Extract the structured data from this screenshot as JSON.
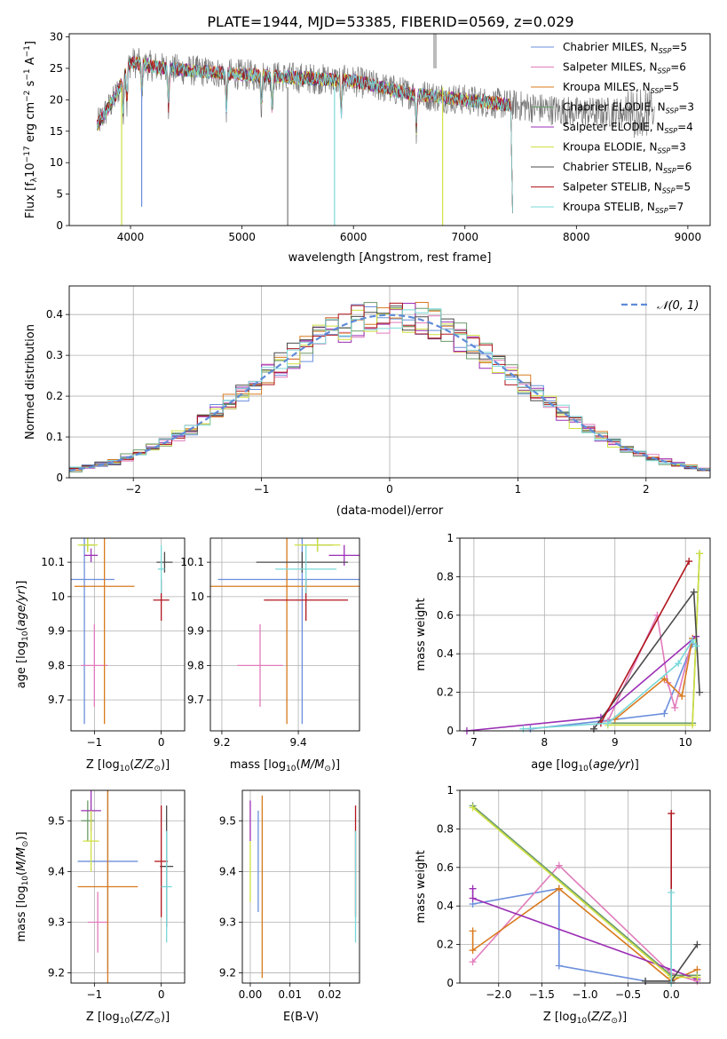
{
  "figure": {
    "title": "PLATE=1944, MJD=53385, FIBERID=0569, z=0.029"
  },
  "legend_entries": [
    {
      "label": "Chabrier MILES, N",
      "sub": "SSP",
      "tail": "=5",
      "color": "#6b8fdc"
    },
    {
      "label": "Salpeter MILES, N",
      "sub": "SSP",
      "tail": "=6",
      "color": "#e17bbb"
    },
    {
      "label": "Kroupa MILES, N",
      "sub": "SSP",
      "tail": "=5",
      "color": "#d97a1e"
    },
    {
      "label": "Chabrier ELODIE, N",
      "sub": "SSP",
      "tail": "=3",
      "color": "#6a9a6a"
    },
    {
      "label": "Salpeter ELODIE, N",
      "sub": "SSP",
      "tail": "=4",
      "color": "#9b2fb5"
    },
    {
      "label": "Kroupa ELODIE, N",
      "sub": "SSP",
      "tail": "=3",
      "color": "#d0e040"
    },
    {
      "label": "Chabrier STELIB, N",
      "sub": "SSP",
      "tail": "=6",
      "color": "#4a4a4a"
    },
    {
      "label": "Salpeter STELIB, N",
      "sub": "SSP",
      "tail": "=5",
      "color": "#b0161e"
    },
    {
      "label": "Kroupa STELIB, N",
      "sub": "SSP",
      "tail": "=7",
      "color": "#7ad8d8"
    }
  ],
  "chart_data": [
    {
      "id": "spectrum",
      "type": "line",
      "xlabel": "wavelength [Angstrom, rest frame]",
      "ylabel": "Flux [f",
      "ylabel_parts": [
        "Flux [f",
        "λ",
        "10",
        "−17",
        " erg cm",
        "−2",
        " s",
        "−1",
        " A",
        "−1",
        "]"
      ],
      "xlim": [
        3450,
        9200
      ],
      "ylim": [
        0,
        30.5
      ],
      "xticks": [
        4000,
        5000,
        6000,
        7000,
        8000,
        9000
      ],
      "yticks": [
        0,
        5,
        10,
        15,
        20,
        25,
        30
      ],
      "grid": false,
      "legend_placement": "top-right",
      "continuum": {
        "x": [
          3700,
          3850,
          4000,
          4300,
          5000,
          5500,
          6000,
          6500,
          7000,
          7500,
          8000,
          9000
        ],
        "y": [
          16,
          20,
          26,
          25,
          24,
          23.5,
          23,
          21,
          20,
          19,
          18,
          18
        ]
      },
      "data_extent": {
        "gray": [
          3700,
          8700
        ],
        "models": [
          3700,
          7430
        ]
      }
    },
    {
      "id": "residuals",
      "type": "line",
      "xlabel": "(data-model)/error",
      "ylabel": "Normed distribution",
      "xlim": [
        -2.5,
        2.5
      ],
      "ylim": [
        0,
        0.47
      ],
      "xticks": [
        -2,
        -1,
        0,
        1,
        2
      ],
      "yticks": [
        0.0,
        0.1,
        0.2,
        0.3,
        0.4
      ],
      "grid": true,
      "legend_placement": "top-right",
      "legend": "𝒩(0, 1)",
      "gaussian": {
        "mean": 0,
        "sigma": 1,
        "color": "#5f8bd8"
      }
    },
    {
      "id": "age_vs_Z",
      "type": "scatter",
      "xlabel": "Z [log",
      "ylabel": "age  [log",
      "xlim": [
        -1.35,
        0.35
      ],
      "ylim": [
        9.61,
        10.17
      ],
      "xticks": [
        -1,
        0
      ],
      "yticks": [
        9.7,
        9.8,
        9.9,
        10.0,
        10.1
      ],
      "grid": true,
      "errorbars": [
        {
          "x": -1.15,
          "xerr": 0.45,
          "y": 10.05,
          "yerr": 0.42,
          "c": 0
        },
        {
          "x": -1.0,
          "xerr": 0.2,
          "y": 9.8,
          "yerr": 0.12,
          "c": 1
        },
        {
          "x": -0.85,
          "xerr": 0.45,
          "y": 10.03,
          "yerr": 0.4,
          "c": 2
        },
        {
          "x": -1.1,
          "xerr": 0.1,
          "y": 10.15,
          "yerr": 0.02,
          "c": 3
        },
        {
          "x": -1.05,
          "xerr": 0.1,
          "y": 10.12,
          "yerr": 0.02,
          "c": 4
        },
        {
          "x": -1.1,
          "xerr": 0.15,
          "y": 10.15,
          "yerr": 0.02,
          "c": 5
        },
        {
          "x": 0.05,
          "xerr": 0.12,
          "y": 10.1,
          "yerr": 0.03,
          "c": 6
        },
        {
          "x": 0.0,
          "xerr": 0.12,
          "y": 9.99,
          "yerr": 0.06,
          "c": 7
        },
        {
          "x": 0.0,
          "xerr": 0.05,
          "y": 10.08,
          "yerr": 0.07,
          "c": 8
        }
      ]
    },
    {
      "id": "age_vs_mass",
      "type": "scatter",
      "xlabel": "mass [log",
      "ylabel": "",
      "xlim": [
        9.17,
        9.56
      ],
      "ylim": [
        9.61,
        10.17
      ],
      "xticks": [
        9.2,
        9.4
      ],
      "yticks": [
        9.7,
        9.8,
        9.9,
        10.0,
        10.1
      ],
      "grid": true,
      "errorbars": [
        {
          "x": 9.41,
          "xerr": 0.22,
          "y": 10.05,
          "yerr": 0.42,
          "c": 0
        },
        {
          "x": 9.3,
          "xerr": 0.06,
          "y": 9.8,
          "yerr": 0.12,
          "c": 1
        },
        {
          "x": 9.37,
          "xerr": 0.2,
          "y": 10.03,
          "yerr": 0.4,
          "c": 2
        },
        {
          "x": 9.45,
          "xerr": 0.04,
          "y": 10.15,
          "yerr": 0.02,
          "c": 3
        },
        {
          "x": 9.52,
          "xerr": 0.04,
          "y": 10.12,
          "yerr": 0.03,
          "c": 4
        },
        {
          "x": 9.45,
          "xerr": 0.06,
          "y": 10.15,
          "yerr": 0.02,
          "c": 5
        },
        {
          "x": 9.41,
          "xerr": 0.12,
          "y": 10.1,
          "yerr": 0.03,
          "c": 6
        },
        {
          "x": 9.42,
          "xerr": 0.11,
          "y": 9.99,
          "yerr": 0.06,
          "c": 7
        },
        {
          "x": 9.42,
          "xerr": 0.08,
          "y": 10.08,
          "yerr": 0.07,
          "c": 8
        }
      ]
    },
    {
      "id": "weight_vs_age",
      "type": "line",
      "xlabel": "age  [log",
      "ylabel": "mass weight",
      "xlim": [
        6.8,
        10.35
      ],
      "ylim": [
        0,
        1.0
      ],
      "xticks": [
        7,
        8,
        9,
        10
      ],
      "yticks": [
        0.0,
        0.2,
        0.4,
        0.6,
        0.8,
        1.0
      ],
      "grid": true,
      "series": [
        {
          "c": 0,
          "x": [
            7.8,
            8.8,
            9.7,
            10.1
          ],
          "y": [
            0.01,
            0.05,
            0.09,
            0.45
          ]
        },
        {
          "c": 1,
          "x": [
            8.9,
            9.6,
            9.75,
            9.85,
            10.1
          ],
          "y": [
            0.05,
            0.6,
            0.25,
            0.12,
            0.48
          ]
        },
        {
          "c": 2,
          "x": [
            9.0,
            9.7,
            9.95,
            10.1
          ],
          "y": [
            0.06,
            0.27,
            0.18,
            0.48
          ]
        },
        {
          "c": 3,
          "x": [
            8.9,
            10.1,
            10.2
          ],
          "y": [
            0.04,
            0.04,
            0.92
          ]
        },
        {
          "c": 4,
          "x": [
            6.9,
            8.8,
            10.15
          ],
          "y": [
            0.0,
            0.07,
            0.49
          ]
        },
        {
          "c": 5,
          "x": [
            8.9,
            10.1,
            10.2
          ],
          "y": [
            0.03,
            0.03,
            0.92
          ]
        },
        {
          "c": 6,
          "x": [
            8.7,
            10.12,
            10.2
          ],
          "y": [
            0.01,
            0.72,
            0.2
          ]
        },
        {
          "c": 7,
          "x": [
            8.8,
            10.05
          ],
          "y": [
            0.04,
            0.88
          ]
        },
        {
          "c": 8,
          "x": [
            7.7,
            8.9,
            9.9,
            10.1,
            10.15
          ],
          "y": [
            0.01,
            0.04,
            0.35,
            0.47,
            0.44
          ]
        }
      ]
    },
    {
      "id": "mass_vs_Z",
      "type": "scatter",
      "xlabel": "Z [log",
      "ylabel": "mass [log",
      "xlim": [
        -1.35,
        0.35
      ],
      "ylim": [
        9.18,
        9.56
      ],
      "xticks": [
        -1,
        0
      ],
      "yticks": [
        9.2,
        9.3,
        9.4,
        9.5
      ],
      "grid": true,
      "errorbars": [
        {
          "x": -0.8,
          "xerr": 0.45,
          "y": 9.42,
          "yerr": 0.22,
          "c": 0
        },
        {
          "x": -0.95,
          "xerr": 0.15,
          "y": 9.3,
          "yerr": 0.06,
          "c": 1
        },
        {
          "x": -0.8,
          "xerr": 0.45,
          "y": 9.37,
          "yerr": 0.2,
          "c": 2
        },
        {
          "x": -1.1,
          "xerr": 0.1,
          "y": 9.5,
          "yerr": 0.04,
          "c": 3
        },
        {
          "x": -1.05,
          "xerr": 0.15,
          "y": 9.52,
          "yerr": 0.04,
          "c": 4
        },
        {
          "x": -1.05,
          "xerr": 0.12,
          "y": 9.46,
          "yerr": 0.06,
          "c": 5
        },
        {
          "x": 0.08,
          "xerr": 0.1,
          "y": 9.41,
          "yerr": 0.12,
          "c": 6
        },
        {
          "x": 0.0,
          "xerr": 0.1,
          "y": 9.42,
          "yerr": 0.11,
          "c": 7
        },
        {
          "x": 0.08,
          "xerr": 0.08,
          "y": 9.37,
          "yerr": 0.11,
          "c": 8
        }
      ]
    },
    {
      "id": "mass_vs_EBV",
      "type": "scatter",
      "xlabel": "E(B-V)",
      "ylabel": "",
      "xlim": [
        -0.002,
        0.0275
      ],
      "ylim": [
        9.18,
        9.56
      ],
      "xticks": [
        0.0,
        0.01,
        0.02
      ],
      "xticklabels": [
        "0.00",
        "0.01",
        "0.02"
      ],
      "yticks": [
        9.2,
        9.3,
        9.4,
        9.5
      ],
      "grid": true,
      "errorbars": [
        {
          "x": 0.002,
          "y": 9.42,
          "yerr": 0.1,
          "c": 0
        },
        {
          "x": 0.0,
          "y": 9.5,
          "yerr": 0.04,
          "c": 4
        },
        {
          "x": 0.0,
          "y": 9.4,
          "yerr": 0.06,
          "c": 5
        },
        {
          "x": 0.003,
          "y": 9.37,
          "yerr": 0.18,
          "c": 2
        },
        {
          "x": 0.0265,
          "y": 9.42,
          "yerr": 0.11,
          "c": 7
        },
        {
          "x": 0.0265,
          "y": 9.37,
          "yerr": 0.11,
          "c": 8
        }
      ]
    },
    {
      "id": "weight_vs_Z",
      "type": "line",
      "xlabel": "Z [log",
      "ylabel": "mass weight",
      "xlim": [
        -2.45,
        0.45
      ],
      "ylim": [
        0,
        1.0
      ],
      "xticks": [
        -2.0,
        -1.5,
        -1.0,
        -0.5,
        0.0
      ],
      "xticklabels": [
        "−2.0",
        "−1.5",
        "−1.0",
        "−0.5",
        "0.0"
      ],
      "yticks": [
        0.0,
        0.2,
        0.4,
        0.6,
        0.8,
        1.0
      ],
      "grid": true,
      "series": [
        {
          "c": 0,
          "x": [
            -2.3,
            -1.3,
            -1.3,
            -0.3,
            0.0
          ],
          "y": [
            0.41,
            0.49,
            0.09,
            0.01,
            0.01
          ]
        },
        {
          "c": 1,
          "x": [
            -2.3,
            -1.3,
            0.0,
            0.3
          ],
          "y": [
            0.11,
            0.61,
            0.05,
            0.01
          ]
        },
        {
          "c": 2,
          "x": [
            -2.3,
            -2.3,
            -1.3,
            0.0,
            0.3
          ],
          "y": [
            0.27,
            0.17,
            0.49,
            0.01,
            0.07
          ]
        },
        {
          "c": 3,
          "x": [
            -2.3,
            0.0,
            0.3
          ],
          "y": [
            0.92,
            0.04,
            0.04
          ]
        },
        {
          "c": 4,
          "x": [
            -2.3,
            -2.3,
            0.0,
            0.3
          ],
          "y": [
            0.49,
            0.44,
            0.07,
            0.02
          ]
        },
        {
          "c": 5,
          "x": [
            -2.3,
            0.0,
            0.3
          ],
          "y": [
            0.91,
            0.03,
            0.03
          ]
        },
        {
          "c": 6,
          "x": [
            -0.3,
            0.0,
            0.3
          ],
          "y": [
            0.01,
            0.01,
            0.2
          ]
        },
        {
          "c": 7,
          "x": [
            0.0,
            0.0
          ],
          "y": [
            0.0,
            0.88
          ]
        },
        {
          "c": 8,
          "x": [
            0.0,
            0.0
          ],
          "y": [
            0.0,
            0.47
          ]
        }
      ]
    }
  ]
}
